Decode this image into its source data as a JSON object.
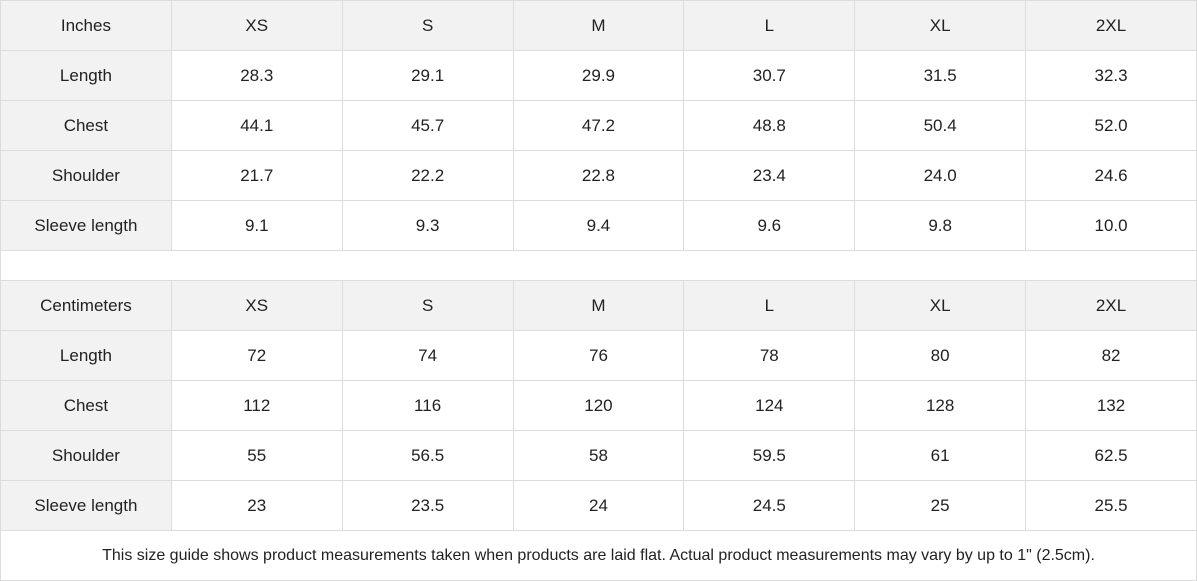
{
  "tables": [
    {
      "unit": "Inches",
      "sizes": [
        "XS",
        "S",
        "M",
        "L",
        "XL",
        "2XL"
      ],
      "rows": [
        {
          "label": "Length",
          "values": [
            "28.3",
            "29.1",
            "29.9",
            "30.7",
            "31.5",
            "32.3"
          ]
        },
        {
          "label": "Chest",
          "values": [
            "44.1",
            "45.7",
            "47.2",
            "48.8",
            "50.4",
            "52.0"
          ]
        },
        {
          "label": "Shoulder",
          "values": [
            "21.7",
            "22.2",
            "22.8",
            "23.4",
            "24.0",
            "24.6"
          ]
        },
        {
          "label": "Sleeve length",
          "values": [
            "9.1",
            "9.3",
            "9.4",
            "9.6",
            "9.8",
            "10.0"
          ]
        }
      ]
    },
    {
      "unit": "Centimeters",
      "sizes": [
        "XS",
        "S",
        "M",
        "L",
        "XL",
        "2XL"
      ],
      "rows": [
        {
          "label": "Length",
          "values": [
            "72",
            "74",
            "76",
            "78",
            "80",
            "82"
          ]
        },
        {
          "label": "Chest",
          "values": [
            "112",
            "116",
            "120",
            "124",
            "128",
            "132"
          ]
        },
        {
          "label": "Shoulder",
          "values": [
            "55",
            "56.5",
            "58",
            "59.5",
            "61",
            "62.5"
          ]
        },
        {
          "label": "Sleeve length",
          "values": [
            "23",
            "23.5",
            "24",
            "24.5",
            "25",
            "25.5"
          ]
        }
      ]
    }
  ],
  "note": "This size guide shows product measurements taken when products are laid flat.  Actual product measurements may vary by up to 1\" (2.5cm).",
  "colors": {
    "header_bg": "#f2f2f2",
    "border": "#dcdcdc"
  }
}
